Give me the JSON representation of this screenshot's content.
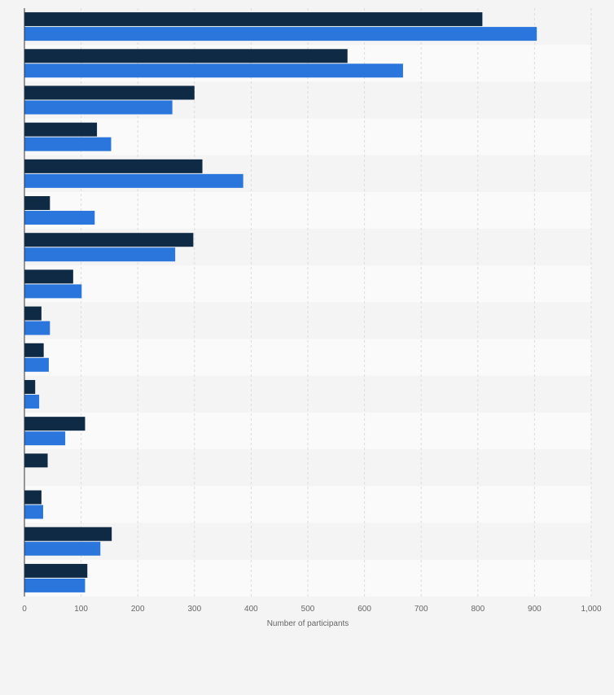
{
  "chart_data": {
    "type": "bar",
    "orientation": "horizontal",
    "categories": [
      "",
      "",
      "",
      "",
      "",
      "",
      "",
      "",
      "",
      "",
      "",
      "",
      "",
      "",
      "",
      ""
    ],
    "series": [
      {
        "color": "#0f2a44",
        "values": [
          808,
          570,
          300,
          128,
          314,
          45,
          298,
          86,
          30,
          34,
          19,
          107,
          41,
          30,
          154,
          111
        ]
      },
      {
        "color": "#2a76dd",
        "values": [
          904,
          668,
          261,
          153,
          386,
          124,
          266,
          101,
          45,
          43,
          26,
          72,
          null,
          33,
          134,
          107
        ]
      }
    ],
    "xlabel": "Number of participants",
    "xlim": [
      0,
      1000
    ],
    "xticks": [
      "0",
      "100",
      "200",
      "300",
      "400",
      "500",
      "600",
      "700",
      "800",
      "900",
      "1,000"
    ],
    "grid": true,
    "legend": "none"
  }
}
